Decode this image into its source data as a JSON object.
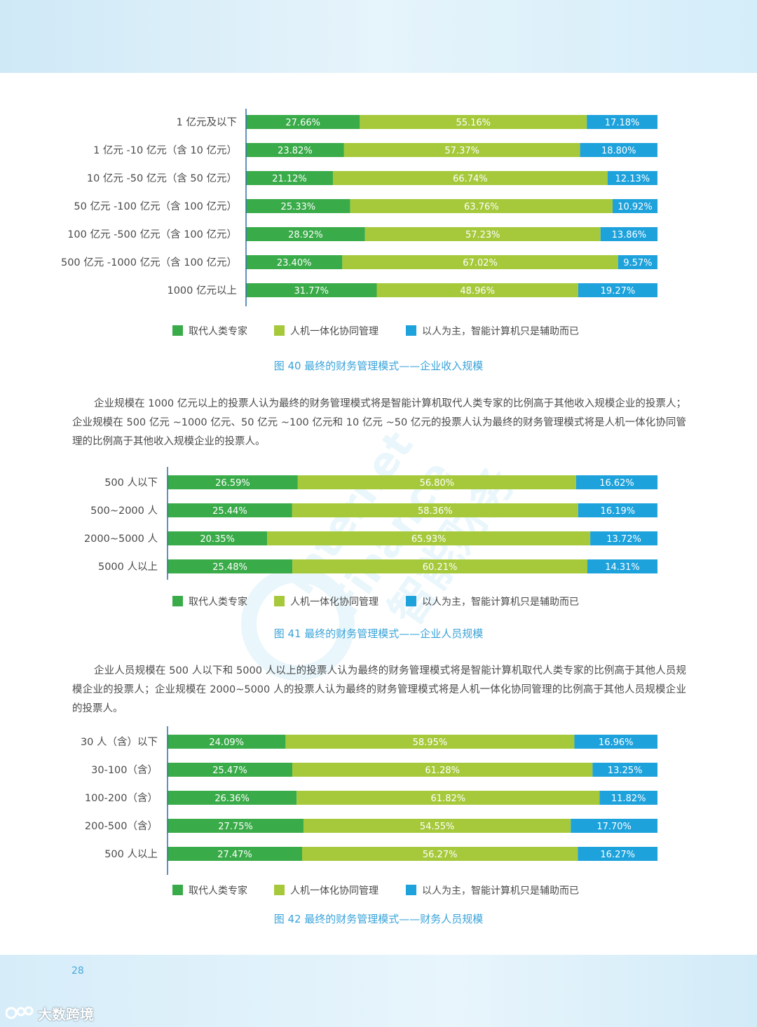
{
  "page": {
    "number": "28",
    "footer_logo": "大数跨境"
  },
  "legend": [
    "取代人类专家",
    "人机一体化协同管理",
    "以人为主，智能计算机只是辅助而已"
  ],
  "colors": {
    "series": [
      "#3aab49",
      "#a6c93b",
      "#1ea2dc"
    ],
    "caption": "#3aa3d9",
    "axis": "#2b6fa8"
  },
  "watermark": {
    "line1": "Internet",
    "line2": "Finance",
    "line3": "智能财务"
  },
  "paragraphs": {
    "p1": "企业规模在 1000 亿元以上的投票人认为最终的财务管理模式将是智能计算机取代人类专家的比例高于其他收入规模企业的投票人；企业规模在 500 亿元 ~1000 亿元、50 亿元 ~100 亿元和 10 亿元 ~50 亿元的投票人认为最终的财务管理模式将是人机一体化协同管理的比例高于其他收入规模企业的投票人。",
    "p2": "企业人员规模在 500 人以下和 5000 人以上的投票人认为最终的财务管理模式将是智能计算机取代人类专家的比例高于其他人员规模企业的投票人；企业规模在 2000~5000 人的投票人认为最终的财务管理模式将是人机一体化协同管理的比例高于其他人员规模企业的投票人。"
  },
  "chart_data": [
    {
      "type": "bar",
      "orientation": "horizontal-stacked-100",
      "title": "图 40  最终的财务管理模式——企业收入规模",
      "categories": [
        "1 亿元及以下",
        "1 亿元 -10 亿元（含 10 亿元）",
        "10 亿元 -50 亿元（含 50 亿元）",
        "50 亿元 -100 亿元（含 100 亿元）",
        "100 亿元 -500 亿元（含 100 亿元）",
        "500 亿元 -1000 亿元（含 100 亿元）",
        "1000 亿元以上"
      ],
      "series": [
        {
          "name": "取代人类专家",
          "values": [
            27.66,
            23.82,
            21.12,
            25.33,
            28.92,
            23.4,
            31.77
          ],
          "labels": [
            "27.66%",
            "23.82%",
            "21.12%",
            "25.33%",
            "28.92%",
            "23.40%",
            "31.77%"
          ]
        },
        {
          "name": "人机一体化协同管理",
          "values": [
            55.16,
            57.37,
            66.74,
            63.76,
            57.23,
            67.02,
            48.96
          ],
          "labels": [
            "55.16%",
            "57.37%",
            "66.74%",
            "63.76%",
            "57.23%",
            "67.02%",
            "48.96%"
          ]
        },
        {
          "name": "以人为主，智能计算机只是辅助而已",
          "values": [
            17.18,
            18.8,
            12.13,
            10.92,
            13.86,
            9.57,
            19.27
          ],
          "labels": [
            "17.18%",
            "18.80%",
            "12.13%",
            "10.92%",
            "13.86%",
            "9.57%",
            "19.27%"
          ]
        }
      ],
      "xlim": [
        0,
        100
      ],
      "legend_position": "bottom"
    },
    {
      "type": "bar",
      "orientation": "horizontal-stacked-100",
      "title": "图 41  最终的财务管理模式——企业人员规模",
      "categories": [
        "500 人以下",
        "500~2000 人",
        "2000~5000 人",
        "5000 人以上"
      ],
      "series": [
        {
          "name": "取代人类专家",
          "values": [
            26.59,
            25.44,
            20.35,
            25.48
          ],
          "labels": [
            "26.59%",
            "25.44%",
            "20.35%",
            "25.48%"
          ]
        },
        {
          "name": "人机一体化协同管理",
          "values": [
            56.8,
            58.36,
            65.93,
            60.21
          ],
          "labels": [
            "56.80%",
            "58.36%",
            "65.93%",
            "60.21%"
          ]
        },
        {
          "name": "以人为主，智能计算机只是辅助而已",
          "values": [
            16.62,
            16.19,
            13.72,
            14.31
          ],
          "labels": [
            "16.62%",
            "16.19%",
            "13.72%",
            "14.31%"
          ]
        }
      ],
      "xlim": [
        0,
        100
      ],
      "legend_position": "bottom"
    },
    {
      "type": "bar",
      "orientation": "horizontal-stacked-100",
      "title": "图 42   最终的财务管理模式——财务人员规模",
      "categories": [
        "30 人（含）以下",
        "30-100（含）",
        "100-200（含）",
        "200-500（含）",
        "500 人以上"
      ],
      "series": [
        {
          "name": "取代人类专家",
          "values": [
            24.09,
            25.47,
            26.36,
            27.75,
            27.47
          ],
          "labels": [
            "24.09%",
            "25.47%",
            "26.36%",
            "27.75%",
            "27.47%"
          ]
        },
        {
          "name": "人机一体化协同管理",
          "values": [
            58.95,
            61.28,
            61.82,
            54.55,
            56.27
          ],
          "labels": [
            "58.95%",
            "61.28%",
            "61.82%",
            "54.55%",
            "56.27%"
          ]
        },
        {
          "name": "以人为主，智能计算机只是辅助而已",
          "values": [
            16.96,
            13.25,
            11.82,
            17.7,
            16.27
          ],
          "labels": [
            "16.96%",
            "13.25%",
            "11.82%",
            "17.70%",
            "16.27%"
          ]
        }
      ],
      "xlim": [
        0,
        100
      ],
      "legend_position": "bottom"
    }
  ]
}
